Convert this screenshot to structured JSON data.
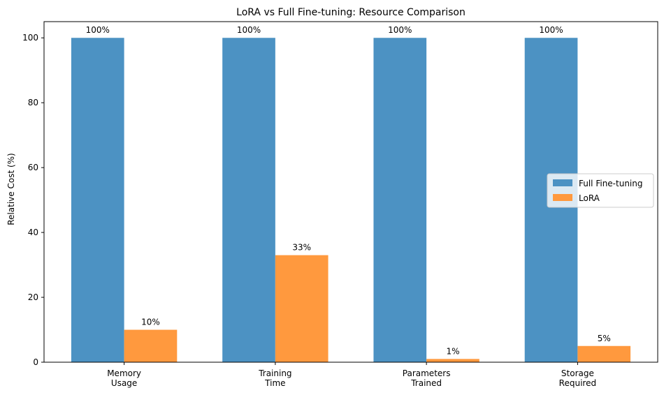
{
  "chart_data": {
    "type": "bar",
    "title": "LoRA vs Full Fine-tuning: Resource Comparison",
    "xlabel": "",
    "ylabel": "Relative Cost (%)",
    "ylim": [
      0,
      105
    ],
    "yticks": [
      0,
      20,
      40,
      60,
      80,
      100
    ],
    "categories": [
      [
        "Memory",
        "Usage"
      ],
      [
        "Training",
        "Time"
      ],
      [
        "Parameters",
        "Trained"
      ],
      [
        "Storage",
        "Required"
      ]
    ],
    "series": [
      {
        "name": "Full Fine-tuning",
        "color": "#4c92c3",
        "values": [
          100,
          100,
          100,
          100
        ],
        "labels": [
          "100%",
          "100%",
          "100%",
          "100%"
        ]
      },
      {
        "name": "LoRA",
        "color": "#ff993e",
        "values": [
          10,
          33,
          1,
          5
        ],
        "labels": [
          "10%",
          "33%",
          "1%",
          "5%"
        ]
      }
    ],
    "legend_position": "center-right",
    "grid": false
  }
}
